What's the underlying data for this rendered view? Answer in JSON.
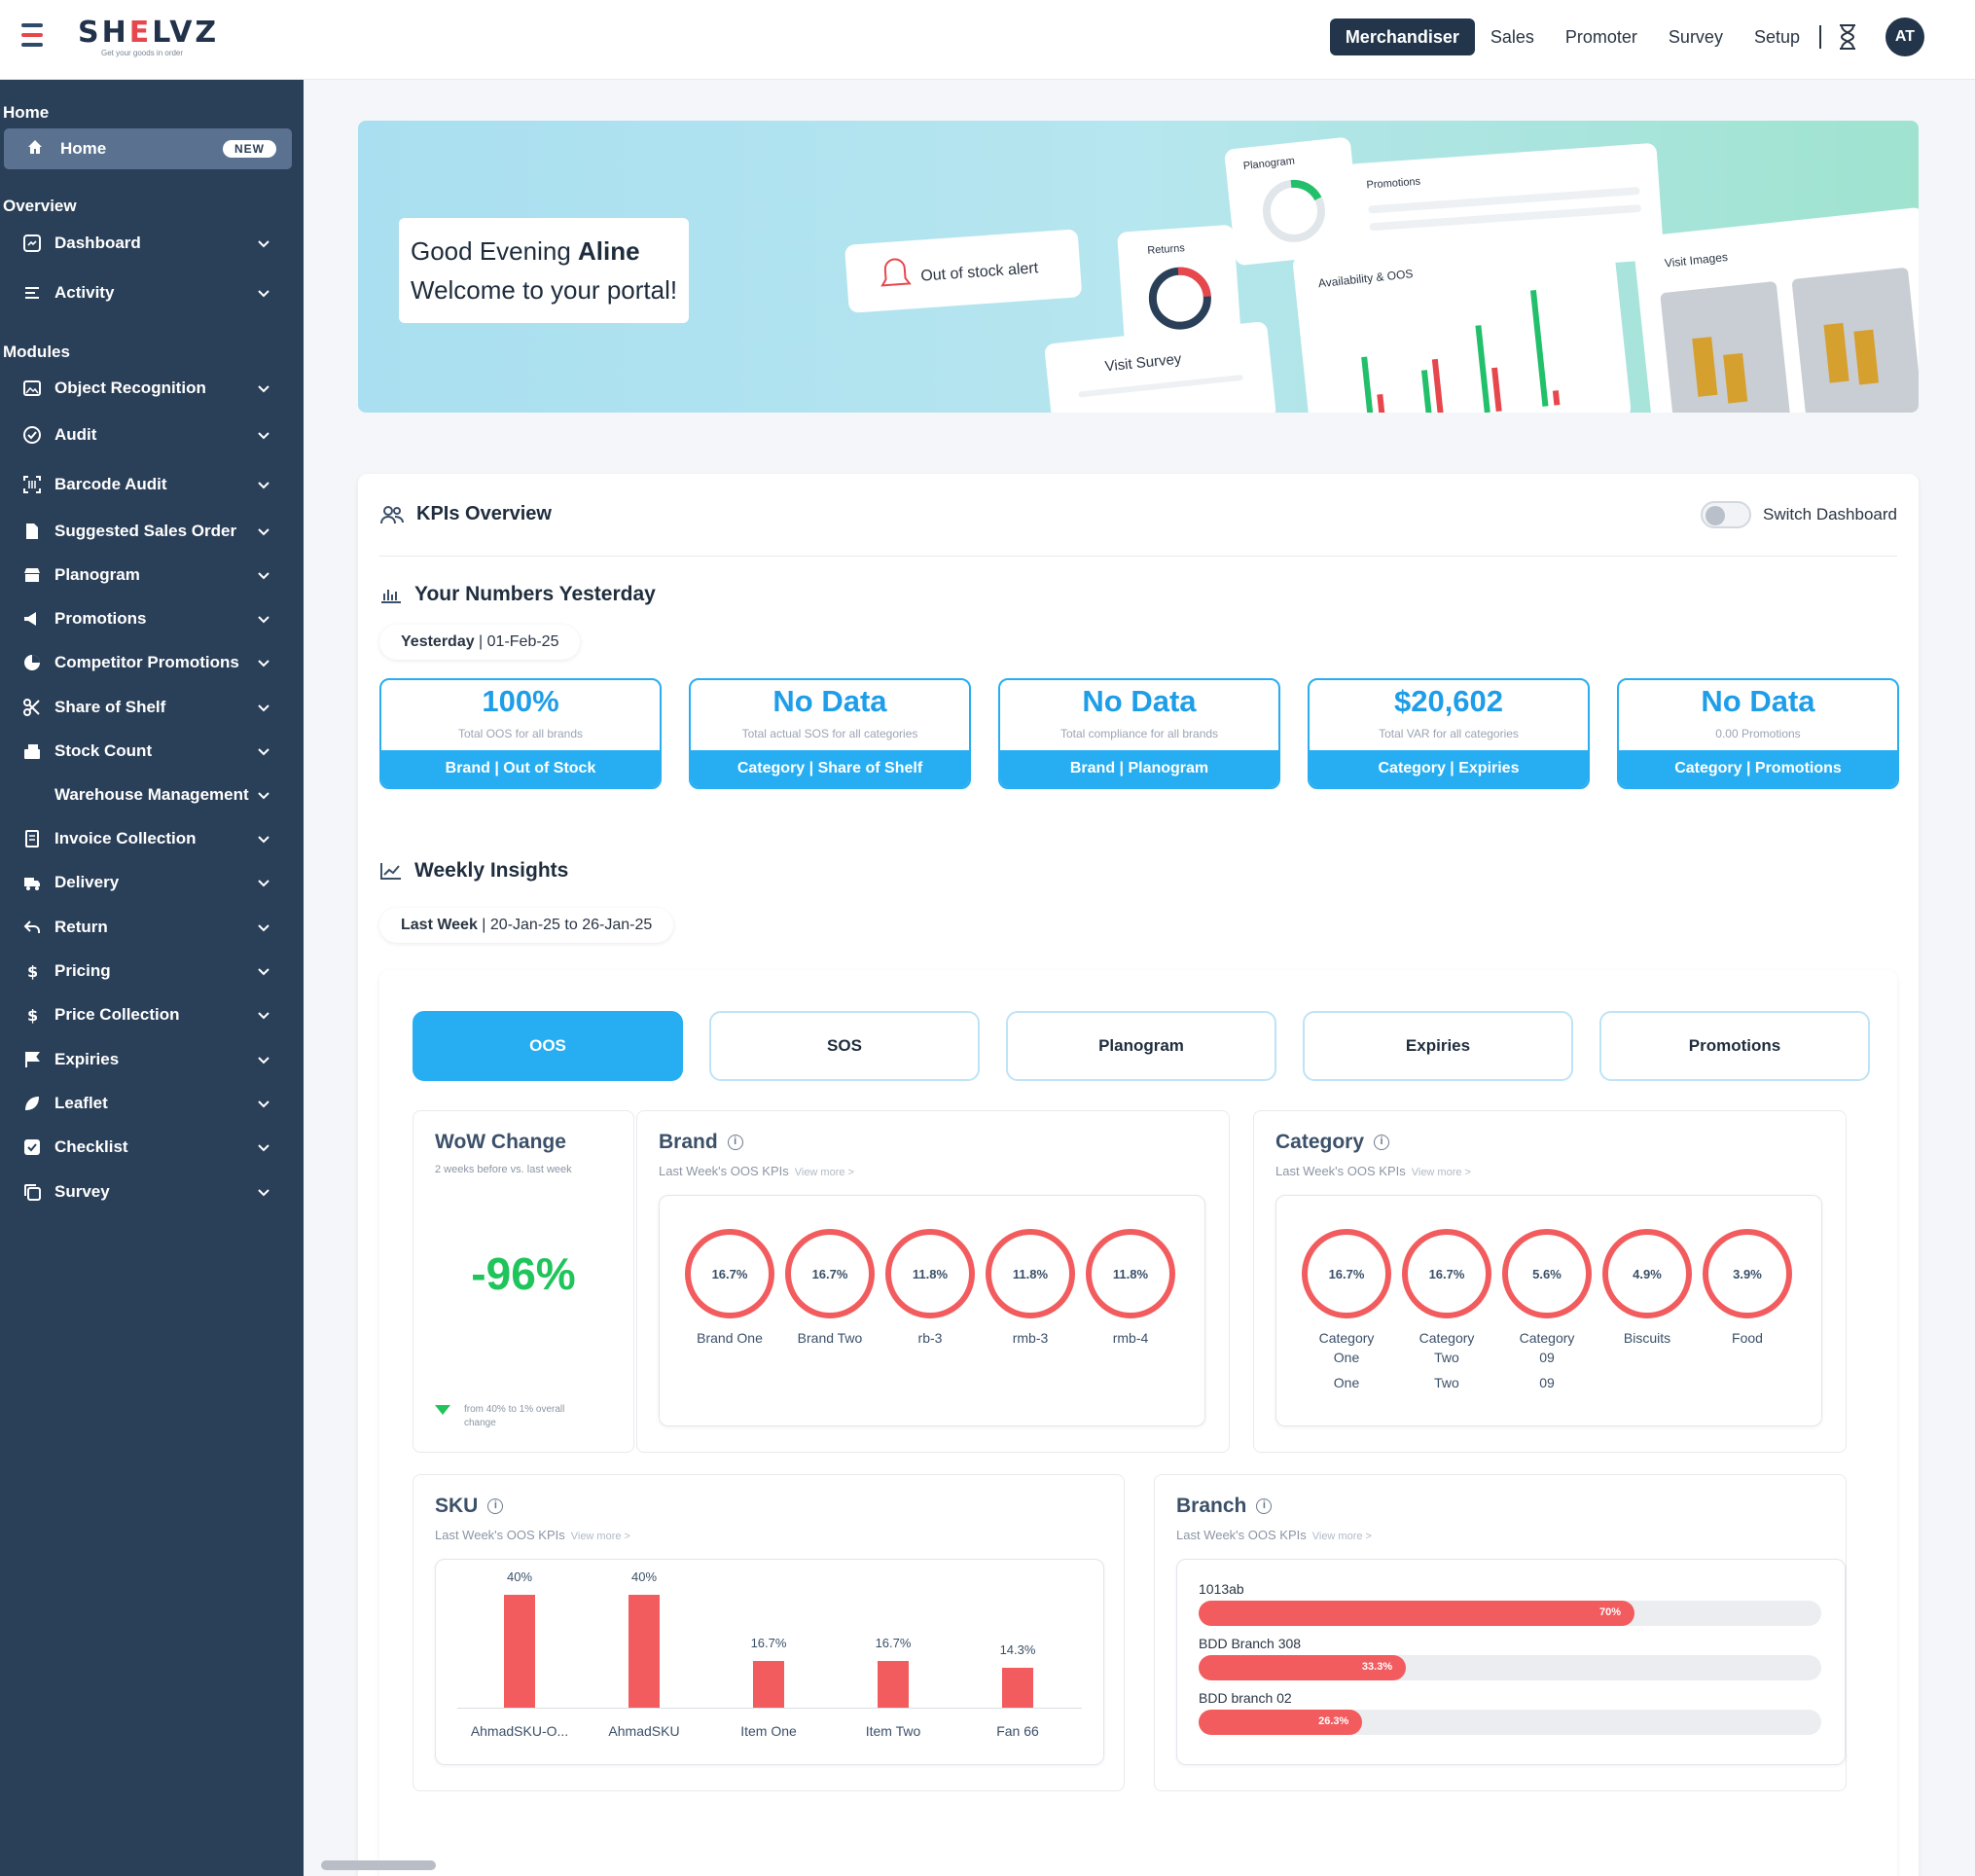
{
  "brand": {
    "name_prefix": "SH",
    "name_accent": "E",
    "name_suffix": "LVZ",
    "tagline": "Get your goods in order"
  },
  "header": {
    "nav": [
      "Merchandiser",
      "Sales",
      "Promoter",
      "Survey",
      "Setup"
    ],
    "active_nav": "Merchandiser",
    "avatar_initials": "AT"
  },
  "sidebar": {
    "home_section": "Home",
    "home_item": {
      "label": "Home",
      "badge": "NEW"
    },
    "overview_section": "Overview",
    "overview_items": [
      {
        "label": "Dashboard",
        "icon": "dashboard-icon"
      },
      {
        "label": "Activity",
        "icon": "activity-icon"
      }
    ],
    "modules_section": "Modules",
    "module_items": [
      {
        "label": "Object Recognition",
        "icon": "image-icon"
      },
      {
        "label": "Audit",
        "icon": "check-circle-icon"
      },
      {
        "label": "Barcode Audit",
        "icon": "barcode-icon"
      },
      {
        "label": "Suggested Sales Order",
        "icon": "document-icon"
      },
      {
        "label": "Planogram",
        "icon": "store-icon"
      },
      {
        "label": "Promotions",
        "icon": "megaphone-icon"
      },
      {
        "label": "Competitor Promotions",
        "icon": "pie-icon"
      },
      {
        "label": "Share of Shelf",
        "icon": "scissors-icon"
      },
      {
        "label": "Stock Count",
        "icon": "boxes-icon"
      },
      {
        "label": "Warehouse Management",
        "icon": ""
      },
      {
        "label": "Invoice Collection",
        "icon": "invoice-icon"
      },
      {
        "label": "Delivery",
        "icon": "truck-icon"
      },
      {
        "label": "Return",
        "icon": "return-arrow-icon"
      },
      {
        "label": "Pricing",
        "icon": "dollar-icon"
      },
      {
        "label": "Price Collection",
        "icon": "dollar-icon"
      },
      {
        "label": "Expiries",
        "icon": "flag-icon"
      },
      {
        "label": "Leaflet",
        "icon": "leaf-icon"
      },
      {
        "label": "Checklist",
        "icon": "checkbox-icon"
      },
      {
        "label": "Survey",
        "icon": "copy-icon"
      }
    ]
  },
  "banner": {
    "greeting": "Good Evening",
    "user": "Aline",
    "welcome": "Welcome to your portal!",
    "illustration_labels": [
      "Out of stock alert",
      "Planogram",
      "Promotions",
      "Returns",
      "Visit Survey",
      "Availability & OOS",
      "Visit Images"
    ]
  },
  "kpis": {
    "title": "KPIs Overview",
    "switch_label": "Switch Dashboard",
    "yesterday_title": "Your Numbers Yesterday",
    "yesterday_pill_label": "Yesterday",
    "yesterday_pill_date": "01-Feb-25",
    "cards": [
      {
        "value": "100%",
        "caption": "Total OOS for all brands",
        "footer": "Brand | Out of Stock"
      },
      {
        "value": "No Data",
        "caption": "Total actual SOS for all categories",
        "footer": "Category | Share of Shelf"
      },
      {
        "value": "No Data",
        "caption": "Total compliance for all brands",
        "footer": "Brand | Planogram"
      },
      {
        "value": "$20,602",
        "caption": "Total VAR for all categories",
        "footer": "Category | Expiries"
      },
      {
        "value": "No Data",
        "caption": "0.00 Promotions",
        "footer": "Category | Promotions"
      }
    ]
  },
  "weekly": {
    "title": "Weekly Insights",
    "pill_label": "Last Week",
    "pill_range": "20-Jan-25 to 26-Jan-25",
    "tabs": [
      "OOS",
      "SOS",
      "Planogram",
      "Expiries",
      "Promotions"
    ],
    "active_tab": "OOS",
    "wow": {
      "title": "WoW Change",
      "subtitle": "2 weeks before vs. last week",
      "value": "-96%",
      "note": "from 40% to 1% overall change"
    },
    "brand": {
      "title": "Brand",
      "subtitle": "Last Week's OOS KPIs",
      "view_more": "View more >",
      "items": [
        {
          "value": "16.7%",
          "label": "Brand One"
        },
        {
          "value": "16.7%",
          "label": "Brand Two"
        },
        {
          "value": "11.8%",
          "label": "rb-3"
        },
        {
          "value": "11.8%",
          "label": "rmb-3"
        },
        {
          "value": "11.8%",
          "label": "rmb-4"
        }
      ]
    },
    "category": {
      "title": "Category",
      "subtitle": "Last Week's OOS KPIs",
      "view_more": "View more >",
      "items": [
        {
          "value": "16.7%",
          "label": "Category One",
          "label2": "One"
        },
        {
          "value": "16.7%",
          "label": "Category Two",
          "label2": "Two"
        },
        {
          "value": "5.6%",
          "label": "Category 09",
          "label2": "09"
        },
        {
          "value": "4.9%",
          "label": "Biscuits",
          "label2": ""
        },
        {
          "value": "3.9%",
          "label": "Food",
          "label2": ""
        }
      ]
    },
    "sku": {
      "title": "SKU",
      "subtitle": "Last Week's OOS KPIs",
      "view_more": "View more >",
      "items": [
        {
          "value": 40,
          "value_label": "40%",
          "label": "AhmadSKU-O..."
        },
        {
          "value": 40,
          "value_label": "40%",
          "label": "AhmadSKU"
        },
        {
          "value": 16.7,
          "value_label": "16.7%",
          "label": "Item One"
        },
        {
          "value": 16.7,
          "value_label": "16.7%",
          "label": "Item Two"
        },
        {
          "value": 14.3,
          "value_label": "14.3%",
          "label": "Fan 66"
        }
      ],
      "max": 40
    },
    "branch": {
      "title": "Branch",
      "subtitle": "Last Week's OOS KPIs",
      "view_more": "View more >",
      "items": [
        {
          "name": "1013ab",
          "value": 70,
          "value_label": "70%"
        },
        {
          "name": "BDD Branch 308",
          "value": 33.3,
          "value_label": "33.3%"
        },
        {
          "name": "BDD branch 02",
          "value": 26.3,
          "value_label": "26.3%"
        }
      ]
    }
  },
  "colors": {
    "accent_blue": "#27aef2",
    "sidebar": "#2a3f58",
    "red": "#f25c5e",
    "green": "#1fc45a"
  }
}
